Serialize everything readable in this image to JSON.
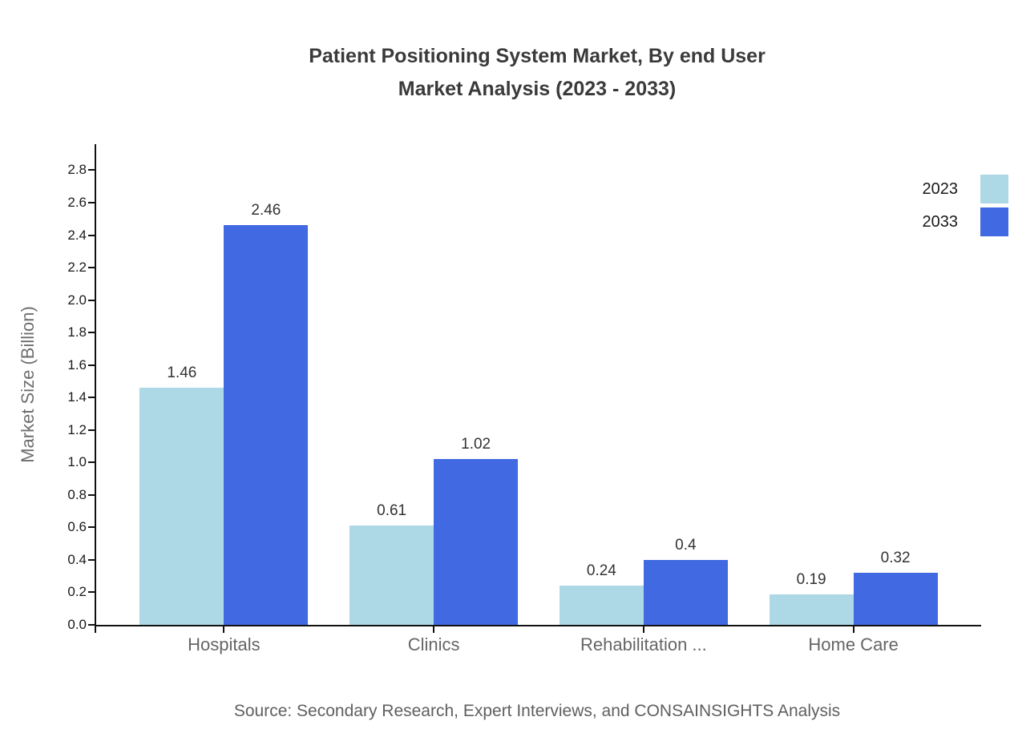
{
  "title": {
    "line1": "Patient Positioning System Market, By end User",
    "line2": "Market Analysis (2023 - 2033)"
  },
  "chart_data": {
    "type": "bar",
    "title": "Patient Positioning System Market, By end User Market Analysis (2023 - 2033)",
    "categories": [
      "Hospitals",
      "Clinics",
      "Rehabilitation ...",
      "Home Care"
    ],
    "series": [
      {
        "name": "2023",
        "color": "#add8e6",
        "values": [
          1.46,
          0.61,
          0.24,
          0.19
        ],
        "labels": [
          "1.46",
          "0.61",
          "0.24",
          "0.19"
        ]
      },
      {
        "name": "2033",
        "color": "#4169e1",
        "values": [
          2.46,
          1.02,
          0.4,
          0.32
        ],
        "labels": [
          "2.46",
          "1.02",
          "0.4",
          "0.32"
        ]
      }
    ],
    "xlabel": "",
    "ylabel": "Market Size (Billion)",
    "ylim": [
      0,
      2.8
    ],
    "ytick_step": 0.2,
    "yticks": [
      "0.0",
      "0.2",
      "0.4",
      "0.6",
      "0.8",
      "1.0",
      "1.2",
      "1.4",
      "1.6",
      "1.8",
      "2.0",
      "2.2",
      "2.4",
      "2.6",
      "2.8"
    ],
    "legend_position": "top-right",
    "grid": false
  },
  "footer": {
    "source": "Source: Secondary Research, Expert Interviews, and CONSAINSIGHTS Analysis"
  }
}
